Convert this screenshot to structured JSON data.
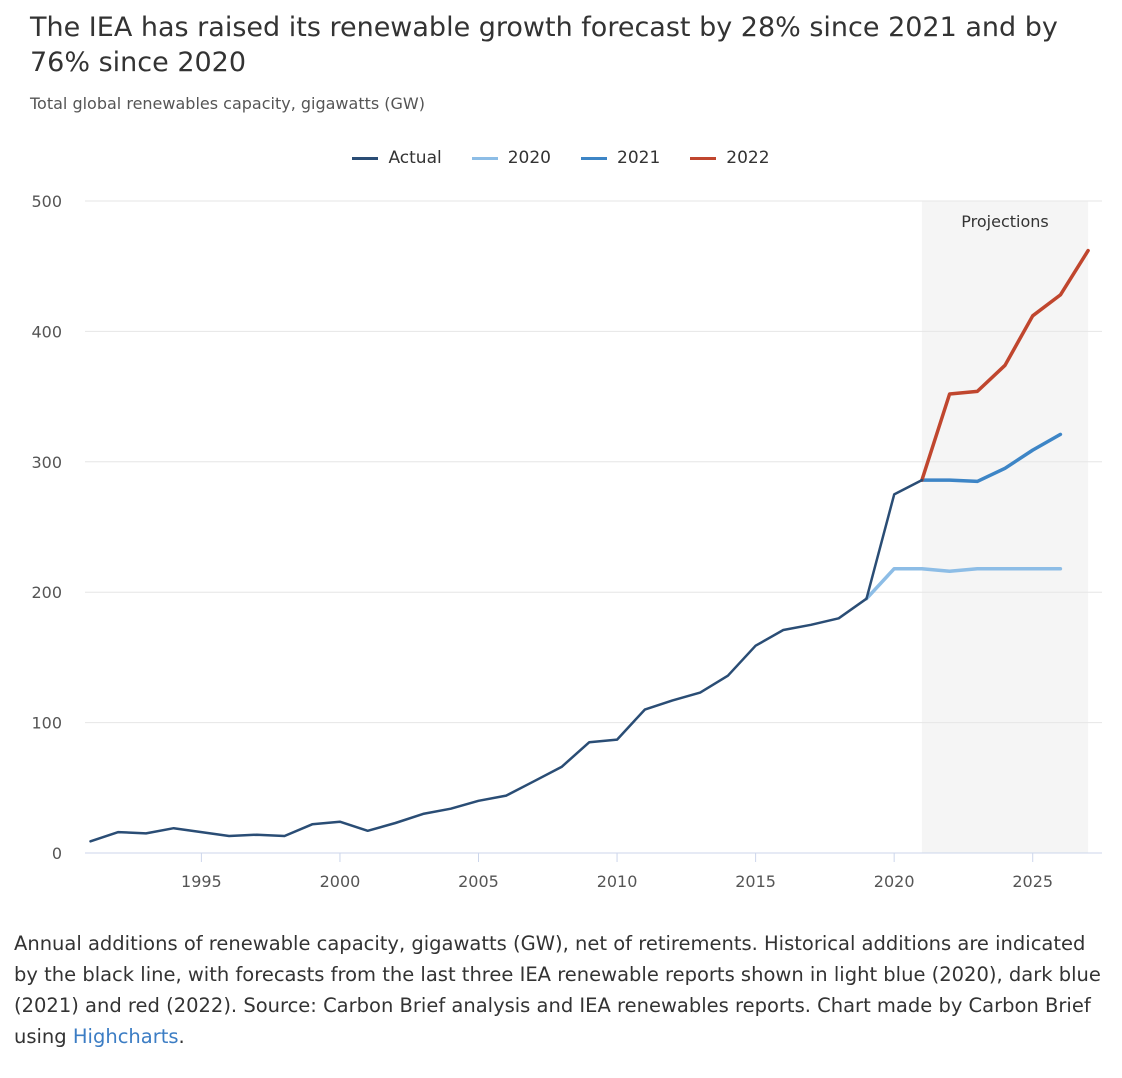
{
  "title": "The IEA has raised its renewable growth forecast by 28% since 2021 and by 76% since 2020",
  "subtitle": "Total global renewables capacity, gigawatts (GW)",
  "caption": {
    "text": "Annual additions of renewable capacity, gigawatts (GW), net of retirements. Historical additions are indicated by the black line, with forecasts from the last three IEA renewable reports shown in light blue (2020), dark blue (2021) and red (2022). Source: Carbon Brief analysis and IEA renewables reports. Chart made by Carbon Brief using ",
    "link": "Highcharts",
    "end": "."
  },
  "chart_data": {
    "type": "line",
    "title": "The IEA has raised its renewable growth forecast by 28% since 2021 and by 76% since 2020",
    "ylabel": "",
    "xlabel": "",
    "ylim": [
      0,
      500
    ],
    "xlim": [
      1990.8,
      2027.5
    ],
    "yticks": [
      0,
      100,
      200,
      300,
      400,
      500
    ],
    "xticks": [
      1995,
      2000,
      2005,
      2010,
      2015,
      2020,
      2025
    ],
    "grid": true,
    "legend_position": "top",
    "band": {
      "from": 2021,
      "to": 2027,
      "label": "Projections",
      "color": "#f5f5f5"
    },
    "series": [
      {
        "name": "Actual",
        "color": "#2a4d75",
        "x": [
          1991,
          1992,
          1993,
          1994,
          1995,
          1996,
          1997,
          1998,
          1999,
          2000,
          2001,
          2002,
          2003,
          2004,
          2005,
          2006,
          2007,
          2008,
          2009,
          2010,
          2011,
          2012,
          2013,
          2014,
          2015,
          2016,
          2017,
          2018,
          2019,
          2020,
          2021
        ],
        "y": [
          9,
          16,
          15,
          19,
          16,
          13,
          14,
          13,
          22,
          24,
          17,
          23,
          30,
          34,
          40,
          44,
          55,
          66,
          85,
          87,
          110,
          117,
          123,
          136,
          159,
          171,
          175,
          180,
          195,
          275,
          286
        ]
      },
      {
        "name": "2020",
        "color": "#8dbde6",
        "x": [
          2019,
          2020,
          2021,
          2022,
          2023,
          2024,
          2025,
          2026
        ],
        "y": [
          195,
          218,
          218,
          216,
          218,
          218,
          218,
          218
        ]
      },
      {
        "name": "2021",
        "color": "#3d85c6",
        "x": [
          2021,
          2022,
          2023,
          2024,
          2025,
          2026
        ],
        "y": [
          286,
          286,
          285,
          295,
          309,
          321
        ]
      },
      {
        "name": "2022",
        "color": "#c0462e",
        "x": [
          2021,
          2022,
          2023,
          2024,
          2025,
          2026,
          2027
        ],
        "y": [
          286,
          352,
          354,
          374,
          412,
          428,
          462
        ]
      }
    ]
  }
}
